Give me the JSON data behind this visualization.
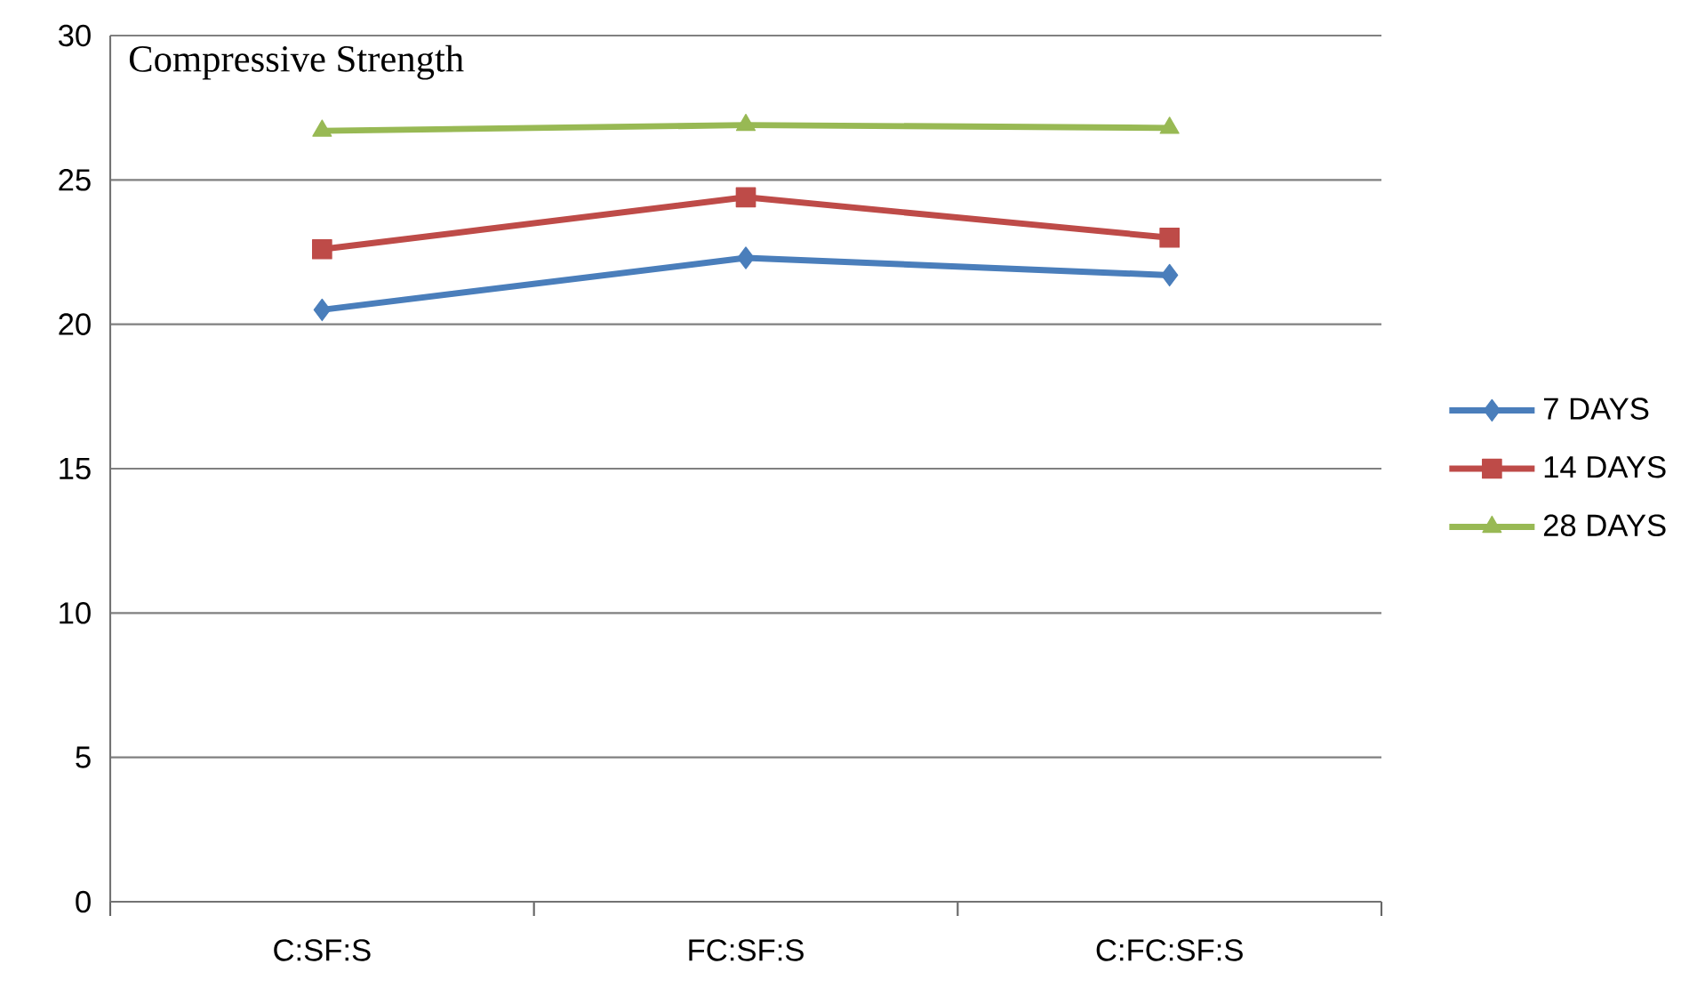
{
  "chart_data": {
    "type": "line",
    "title": "Compressive Strength",
    "categories": [
      "C:SF:S",
      "FC:SF:S",
      "C:FC:SF:S"
    ],
    "series": [
      {
        "name": "7 DAYS",
        "color": "#4a7ebb",
        "marker": "diamond",
        "values": [
          20.5,
          22.3,
          21.7
        ]
      },
      {
        "name": "14 DAYS",
        "color": "#be4b48",
        "marker": "square",
        "values": [
          22.6,
          24.4,
          23.0
        ]
      },
      {
        "name": "28 DAYS",
        "color": "#98b954",
        "marker": "triangle",
        "values": [
          26.7,
          26.9,
          26.8
        ]
      }
    ],
    "ylim": [
      0,
      30
    ],
    "yticks": [
      0,
      5,
      10,
      15,
      20,
      25,
      30
    ],
    "grid": "y",
    "legend": "right"
  }
}
